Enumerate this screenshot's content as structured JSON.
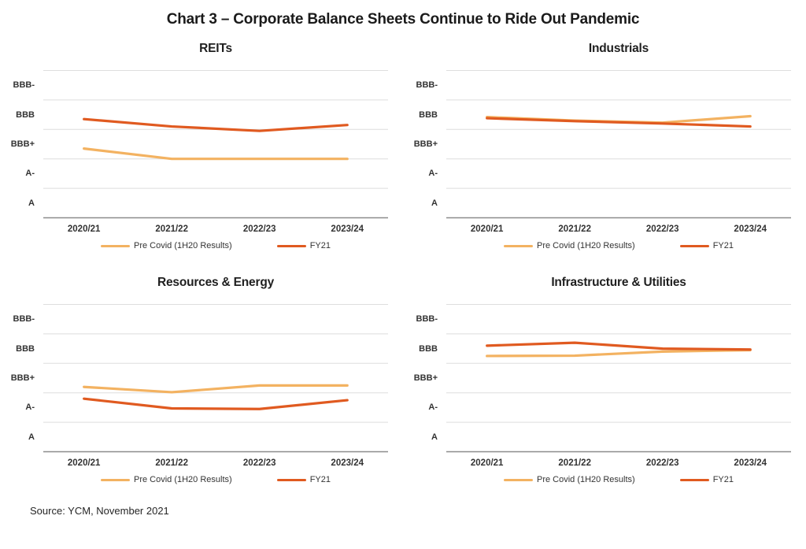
{
  "figure": {
    "title": "Chart 3 – Corporate Balance Sheets Continue to Ride Out Pandemic",
    "source": "Source: YCM, November 2021"
  },
  "colors": {
    "pre_covid": "#F3B261",
    "fy21": "#E05A20",
    "gridline": "#DEDEDE",
    "axis_line": "#8C8C8C",
    "title_text": "#1A1A1A",
    "label_text": "#333333"
  },
  "legend": {
    "series1_label": "Pre Covid (1H20 Results)",
    "series2_label": "FY21"
  },
  "rating_scale_note": "y values use numeric rating scale A=0, A-=1, BBB+=2, BBB=3, BBB-=4; gridlines at band boundaries (±0.5)",
  "chart_data": [
    {
      "type": "line",
      "title": "REITs",
      "categories": [
        "2020/21",
        "2021/22",
        "2022/23",
        "2023/24"
      ],
      "y_tick_labels": [
        "BBB-",
        "BBB",
        "BBB+",
        "A-",
        "A"
      ],
      "y_value_map": {
        "A": 0,
        "A-": 1,
        "BBB+": 2,
        "BBB": 3,
        "BBB-": 4
      },
      "ylim": [
        -0.5,
        4.5
      ],
      "grid": true,
      "legend_position": "bottom",
      "series": [
        {
          "name": "Pre Covid (1H20 Results)",
          "color": "#F3B261",
          "values": [
            1.85,
            1.5,
            1.5,
            1.5
          ]
        },
        {
          "name": "FY21",
          "color": "#E05A20",
          "values": [
            2.85,
            2.6,
            2.45,
            2.65
          ]
        }
      ]
    },
    {
      "type": "line",
      "title": "Industrials",
      "categories": [
        "2020/21",
        "2021/22",
        "2022/23",
        "2023/24"
      ],
      "y_tick_labels": [
        "BBB-",
        "BBB",
        "BBB+",
        "A-",
        "A"
      ],
      "y_value_map": {
        "A": 0,
        "A-": 1,
        "BBB+": 2,
        "BBB": 3,
        "BBB-": 4
      },
      "ylim": [
        -0.5,
        4.5
      ],
      "grid": true,
      "legend_position": "bottom",
      "series": [
        {
          "name": "Pre Covid (1H20 Results)",
          "color": "#F3B261",
          "values": [
            2.92,
            2.8,
            2.73,
            2.95
          ]
        },
        {
          "name": "FY21",
          "color": "#E05A20",
          "values": [
            2.88,
            2.78,
            2.7,
            2.6
          ]
        }
      ]
    },
    {
      "type": "line",
      "title": "Resources & Energy",
      "categories": [
        "2020/21",
        "2021/22",
        "2022/23",
        "2023/24"
      ],
      "y_tick_labels": [
        "BBB-",
        "BBB",
        "BBB+",
        "A-",
        "A"
      ],
      "y_value_map": {
        "A": 0,
        "A-": 1,
        "BBB+": 2,
        "BBB": 3,
        "BBB-": 4
      },
      "ylim": [
        -0.5,
        4.5
      ],
      "grid": true,
      "legend_position": "bottom",
      "series": [
        {
          "name": "Pre Covid (1H20 Results)",
          "color": "#F3B261",
          "values": [
            1.7,
            1.52,
            1.75,
            1.75
          ]
        },
        {
          "name": "FY21",
          "color": "#E05A20",
          "values": [
            1.3,
            0.97,
            0.95,
            1.25
          ]
        }
      ]
    },
    {
      "type": "line",
      "title": "Infrastructure & Utilities",
      "categories": [
        "2020/21",
        "2021/22",
        "2022/23",
        "2023/24"
      ],
      "y_tick_labels": [
        "BBB-",
        "BBB",
        "BBB+",
        "A-",
        "A"
      ],
      "y_value_map": {
        "A": 0,
        "A-": 1,
        "BBB+": 2,
        "BBB": 3,
        "BBB-": 4
      },
      "ylim": [
        -0.5,
        4.5
      ],
      "grid": true,
      "legend_position": "bottom",
      "series": [
        {
          "name": "Pre Covid (1H20 Results)",
          "color": "#F3B261",
          "values": [
            2.75,
            2.76,
            2.9,
            2.95
          ]
        },
        {
          "name": "FY21",
          "color": "#E05A20",
          "values": [
            3.1,
            3.2,
            3.0,
            2.97
          ]
        }
      ]
    }
  ]
}
